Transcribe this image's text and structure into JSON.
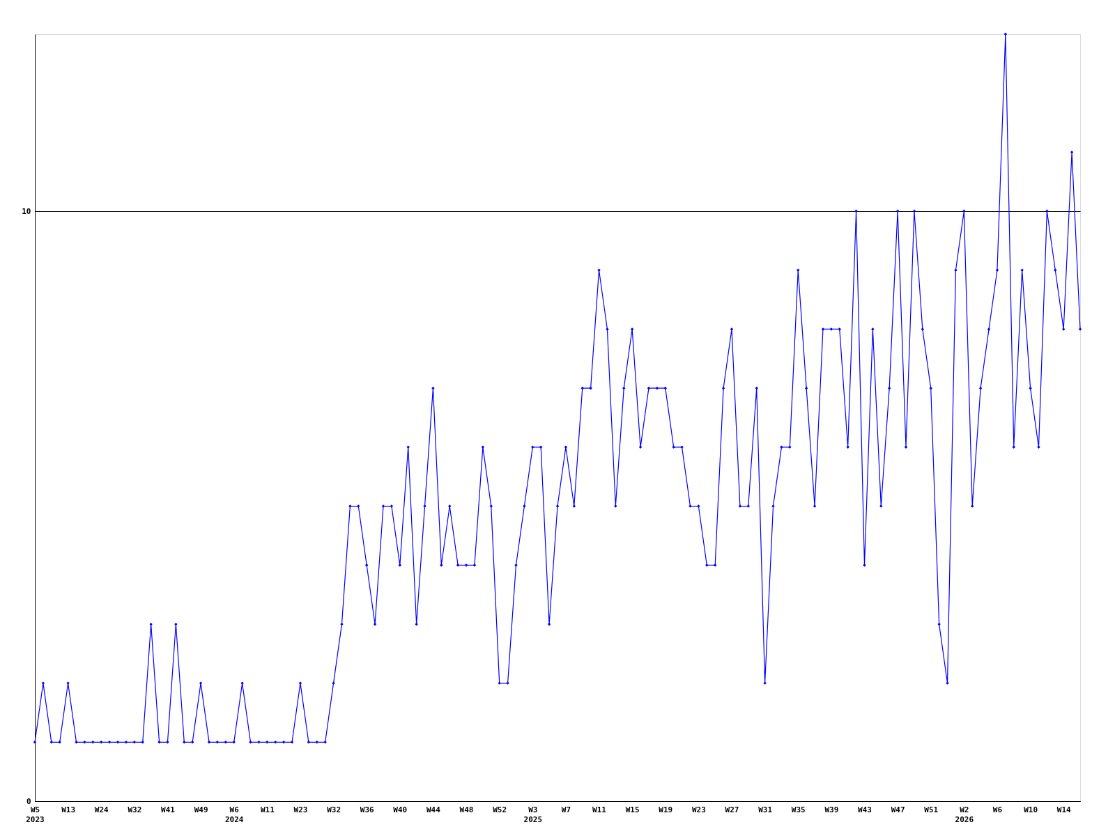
{
  "chart_data": {
    "type": "line",
    "categories": [
      "W5\n2023",
      null,
      null,
      null,
      "W13",
      null,
      null,
      null,
      "W24",
      null,
      null,
      null,
      "W32",
      null,
      null,
      null,
      "W41",
      null,
      null,
      null,
      "W49",
      null,
      null,
      null,
      "W6\n2024",
      null,
      null,
      null,
      "W11",
      null,
      null,
      null,
      "W23",
      null,
      null,
      null,
      "W32",
      null,
      null,
      null,
      "W36",
      null,
      null,
      null,
      "W40",
      null,
      null,
      null,
      "W44",
      null,
      null,
      null,
      "W48",
      null,
      null,
      null,
      "W52",
      null,
      null,
      null,
      "W3\n2025",
      null,
      null,
      null,
      "W7",
      null,
      null,
      null,
      "W11",
      null,
      null,
      null,
      "W15",
      null,
      null,
      null,
      "W19",
      null,
      null,
      null,
      "W23",
      null,
      null,
      null,
      "W27",
      null,
      null,
      null,
      "W31",
      null,
      null,
      null,
      "W35",
      null,
      null,
      null,
      "W39",
      null,
      null,
      null,
      "W43",
      null,
      null,
      null,
      "W47",
      null,
      null,
      null,
      "W51",
      null,
      null,
      null,
      "W2\n2026",
      null,
      null,
      null,
      "W6",
      null,
      null,
      null,
      "W10",
      null,
      null,
      null,
      "W14",
      null,
      null
    ],
    "series": [
      {
        "color": "#0000ff",
        "values": [
          1,
          2,
          1,
          1,
          2,
          1,
          1,
          1,
          1,
          1,
          1,
          1,
          1,
          1,
          3,
          1,
          1,
          3,
          1,
          1,
          2,
          1,
          1,
          1,
          1,
          2,
          1,
          1,
          1,
          1,
          1,
          1,
          2,
          1,
          1,
          1,
          2,
          3,
          5,
          5,
          4,
          3,
          5,
          5,
          4,
          6,
          3,
          5,
          7,
          4,
          5,
          4,
          4,
          4,
          6,
          5,
          2,
          2,
          4,
          5,
          6,
          6,
          3,
          5,
          6,
          5,
          7,
          7,
          9,
          8,
          5,
          7,
          8,
          6,
          7,
          7,
          7,
          6,
          6,
          5,
          5,
          4,
          4,
          7,
          8,
          5,
          5,
          7,
          2,
          5,
          6,
          6,
          9,
          7,
          5,
          8,
          8,
          8,
          6,
          10,
          4,
          8,
          5,
          7,
          10,
          6,
          10,
          8,
          7,
          3,
          2,
          9,
          10,
          5,
          7,
          8,
          9,
          13,
          6,
          9,
          7,
          6,
          10,
          9,
          8,
          11,
          8
        ]
      }
    ],
    "ylim": [
      0,
      13
    ],
    "yticks": [
      0,
      10
    ],
    "grid": "y",
    "marker": "diamond",
    "line_style": "solid"
  }
}
